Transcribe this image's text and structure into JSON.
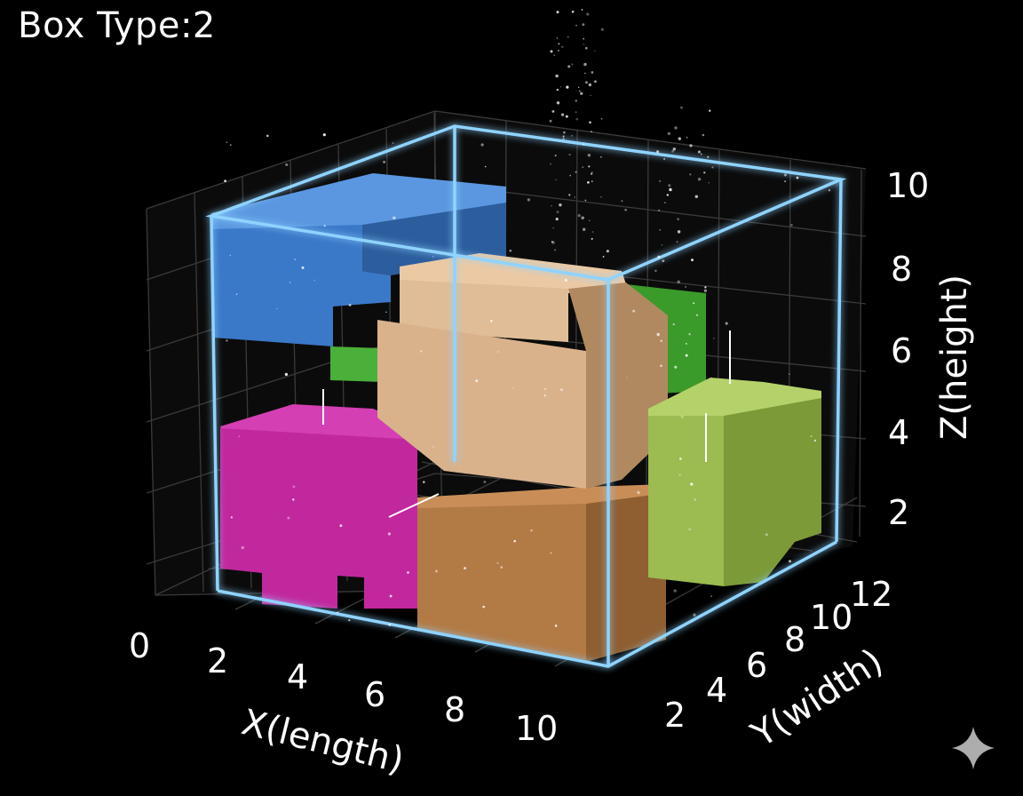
{
  "chart_data": {
    "type": "3d-voxel-packing",
    "title": "Box Type:2",
    "xlabel": "X(length)",
    "ylabel": "Y(width)",
    "zlabel": "Z(height)",
    "x_ticks": [
      "0",
      "2",
      "4",
      "6",
      "8",
      "10"
    ],
    "y_ticks": [
      "2",
      "4",
      "6",
      "8",
      "10",
      "12"
    ],
    "z_ticks": [
      "2",
      "4",
      "6",
      "8",
      "10"
    ],
    "container": {
      "x": [
        0,
        11
      ],
      "y": [
        0,
        12
      ],
      "z": [
        0,
        10
      ]
    },
    "objects": [
      {
        "color": "#3a78c8"
      },
      {
        "color": "#4bb03a"
      },
      {
        "color": "#c2289e"
      },
      {
        "color": "#d9b28c"
      },
      {
        "color": "#b27a45"
      },
      {
        "color": "#9cbb50"
      }
    ],
    "colors": {
      "container_edge": "#8fd3ff",
      "background": "#000000",
      "grid": "#3a3a3a"
    }
  }
}
